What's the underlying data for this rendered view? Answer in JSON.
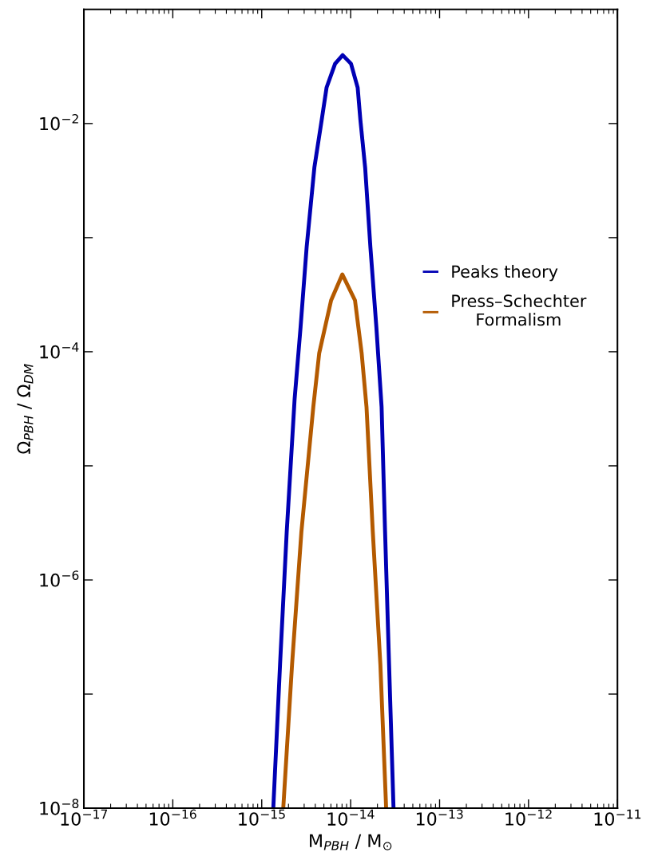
{
  "chart_data": {
    "type": "line",
    "xlabel": "M$_{PBH}$ / M$_{⊙}$",
    "ylabel": "Ω$_{PBH}$ / Ω$_{DM}$",
    "log": "xy",
    "xlim": [
      1e-17,
      1e-11
    ],
    "ylim": [
      1e-08,
      0.1
    ],
    "xticks": [
      {
        "value": 1e-17,
        "label": "10$^{−17}$"
      },
      {
        "value": 1e-16,
        "label": "10$^{−16}$"
      },
      {
        "value": 1e-15,
        "label": "10$^{−15}$"
      },
      {
        "value": 1e-14,
        "label": "10$^{−14}$"
      },
      {
        "value": 1e-13,
        "label": "10$^{−13}$"
      },
      {
        "value": 1e-12,
        "label": "10$^{−12}$"
      },
      {
        "value": 1e-11,
        "label": "10$^{−11}$"
      }
    ],
    "yticks": [
      {
        "value": 1e-08,
        "label": "10$^{−8}$"
      },
      {
        "value": 1e-07,
        "label": null
      },
      {
        "value": 1e-06,
        "label": "10$^{−6}$"
      },
      {
        "value": 1e-05,
        "label": null
      },
      {
        "value": 0.0001,
        "label": "10$^{−4}$"
      },
      {
        "value": 0.001,
        "label": null
      },
      {
        "value": 0.01,
        "label": "10$^{−2}$"
      }
    ],
    "legend": "right",
    "grid": false,
    "marker": "none",
    "line_style": "solid",
    "series": [
      {
        "name": "Peaks theory",
        "color": "#0000b4",
        "x": [
          1.349e-15,
          1.607e-15,
          1.91e-15,
          2.344e-15,
          2.735e-15,
          3.199e-15,
          3.908e-15,
          4.732e-15,
          5.358e-15,
          6.683e-15,
          8.128e-15,
          1.009e-14,
          1.199e-14,
          1.285e-14,
          1.455e-14,
          1.667e-14,
          1.945e-14,
          2.228e-14,
          2.438e-14,
          2.704e-14,
          3.034e-14
        ],
        "values": [
          1e-08,
          1.816e-07,
          2.642e-06,
          3.864e-05,
          0.0001648,
          0.0008241,
          0.004121,
          0.01084,
          0.02065,
          0.03342,
          0.03972,
          0.03342,
          0.02065,
          0.01084,
          0.004121,
          0.0008241,
          0.0001648,
          3.289e-05,
          2.642e-06,
          1.816e-07,
          1e-08
        ]
      },
      {
        "name": "Press–Schechter\nFormalism",
        "color": "#b45a00",
        "x": [
          1.746e-15,
          2.193e-15,
          2.793e-15,
          3.802e-15,
          4.426e-15,
          6.026e-15,
          8.054e-15,
          1.119e-14,
          1.33e-14,
          1.507e-14,
          1.774e-14,
          2.158e-14,
          2.506e-14
        ],
        "values": [
          1e-08,
          1.816e-07,
          2.642e-06,
          3.289e-05,
          9.683e-05,
          0.0002818,
          0.0004764,
          0.0002818,
          9.683e-05,
          3.289e-05,
          2.642e-06,
          1.816e-07,
          1e-08
        ]
      }
    ]
  }
}
